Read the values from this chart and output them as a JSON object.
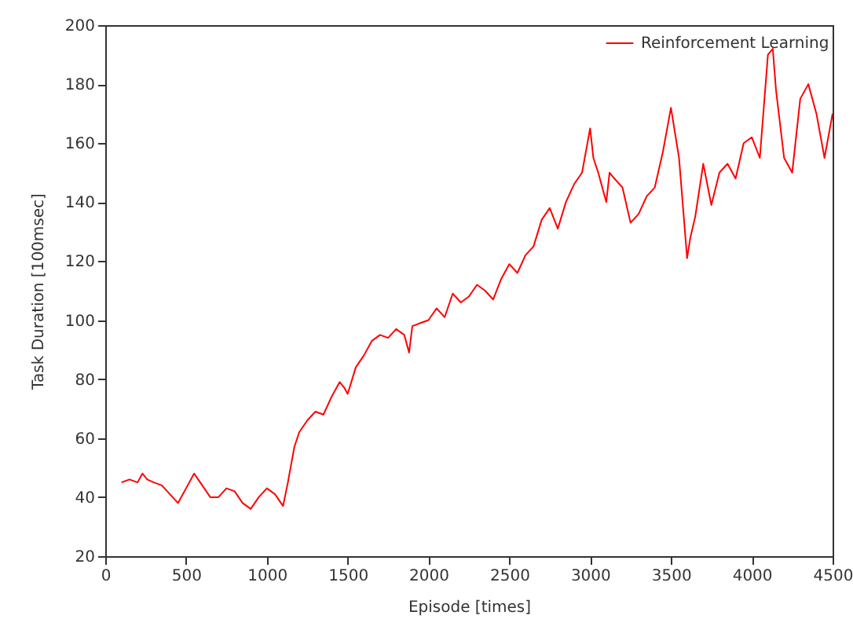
{
  "chart_data": {
    "type": "line",
    "xlabel": "Episode [times]",
    "ylabel": "Task Duration [100msec]",
    "xlim": [
      0,
      4500
    ],
    "xticks": [
      0,
      500,
      1000,
      1500,
      2000,
      2500,
      3000,
      3500,
      4000,
      4500
    ],
    "ylim": [
      20,
      200
    ],
    "yticks": [
      20,
      40,
      60,
      80,
      100,
      120,
      140,
      160,
      180,
      200
    ],
    "grid": false,
    "legend": "top right",
    "line_style": "solid",
    "marker": "none",
    "series": [
      {
        "name": "Reinforcement Learning",
        "color": "#ff0000",
        "x": [
          100,
          150,
          200,
          230,
          260,
          300,
          350,
          400,
          450,
          500,
          550,
          600,
          650,
          700,
          750,
          800,
          850,
          900,
          950,
          1000,
          1050,
          1100,
          1130,
          1170,
          1200,
          1250,
          1300,
          1350,
          1400,
          1450,
          1480,
          1500,
          1550,
          1600,
          1650,
          1700,
          1750,
          1800,
          1850,
          1880,
          1900,
          1950,
          2000,
          2050,
          2100,
          2150,
          2200,
          2250,
          2300,
          2350,
          2400,
          2450,
          2500,
          2550,
          2600,
          2650,
          2700,
          2750,
          2800,
          2850,
          2900,
          2950,
          3000,
          3020,
          3050,
          3100,
          3120,
          3150,
          3200,
          3250,
          3300,
          3350,
          3400,
          3450,
          3500,
          3550,
          3600,
          3620,
          3650,
          3700,
          3750,
          3800,
          3850,
          3900,
          3950,
          4000,
          4050,
          4100,
          4130,
          4150,
          4200,
          4250,
          4300,
          4350,
          4400,
          4450,
          4500
        ],
        "values": [
          45,
          46,
          45,
          48,
          46,
          45,
          44,
          41,
          38,
          43,
          48,
          44,
          40,
          40,
          43,
          42,
          38,
          36,
          40,
          43,
          41,
          37,
          45,
          57,
          62,
          66,
          69,
          68,
          74,
          79,
          77,
          75,
          84,
          88,
          93,
          95,
          94,
          97,
          95,
          89,
          98,
          99,
          100,
          104,
          101,
          109,
          106,
          108,
          112,
          110,
          107,
          114,
          119,
          116,
          122,
          125,
          134,
          138,
          131,
          140,
          146,
          150,
          165,
          155,
          150,
          140,
          150,
          148,
          145,
          133,
          136,
          142,
          145,
          157,
          172,
          155,
          121,
          128,
          135,
          153,
          139,
          150,
          153,
          148,
          160,
          162,
          155,
          190,
          192,
          178,
          155,
          150,
          175,
          180,
          170,
          155,
          170
        ]
      }
    ]
  }
}
